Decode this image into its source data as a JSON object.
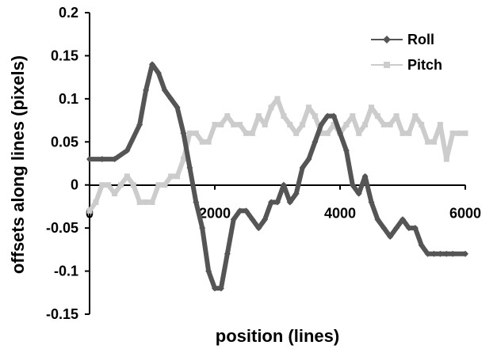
{
  "chart_data": {
    "type": "line",
    "title": "",
    "xlabel": "position (lines)",
    "ylabel": "offsets along lines (pixels)",
    "xlim": [
      0,
      6000
    ],
    "ylim": [
      -0.15,
      0.2
    ],
    "x_ticks": [
      "0",
      "2000",
      "4000",
      "6000"
    ],
    "x_tick_values": [
      0,
      2000,
      4000,
      6000
    ],
    "y_ticks": [
      "0.2",
      "0.15",
      "0.1",
      "0.05",
      "0",
      "-0.05",
      "-0.1",
      "-0.15"
    ],
    "y_tick_values": [
      0.2,
      0.15,
      0.1,
      0.05,
      0,
      -0.05,
      -0.1,
      -0.15
    ],
    "grid": false,
    "legend_position": "top-right",
    "series": [
      {
        "name": "Roll",
        "color": "#555555",
        "marker": "diamond",
        "x": [
          0,
          200,
          400,
          600,
          800,
          900,
          1000,
          1100,
          1200,
          1300,
          1400,
          1500,
          1600,
          1700,
          1800,
          1900,
          2000,
          2100,
          2200,
          2300,
          2400,
          2500,
          2600,
          2700,
          2800,
          2900,
          3000,
          3100,
          3200,
          3300,
          3400,
          3500,
          3600,
          3700,
          3800,
          3900,
          4000,
          4100,
          4200,
          4300,
          4400,
          4500,
          4600,
          4700,
          4800,
          4900,
          5000,
          5100,
          5200,
          5300,
          5400,
          5500,
          5600,
          5700,
          5800,
          6000
        ],
        "y": [
          0.03,
          0.03,
          0.03,
          0.04,
          0.07,
          0.11,
          0.14,
          0.13,
          0.11,
          0.1,
          0.09,
          0.06,
          0.02,
          -0.02,
          -0.05,
          -0.1,
          -0.12,
          -0.12,
          -0.08,
          -0.04,
          -0.03,
          -0.03,
          -0.04,
          -0.05,
          -0.04,
          -0.02,
          -0.02,
          0.0,
          -0.02,
          -0.01,
          0.02,
          0.03,
          0.05,
          0.07,
          0.08,
          0.08,
          0.06,
          0.04,
          0.0,
          -0.01,
          0.01,
          -0.02,
          -0.04,
          -0.05,
          -0.06,
          -0.05,
          -0.04,
          -0.05,
          -0.05,
          -0.07,
          -0.08,
          -0.08,
          -0.08,
          -0.08,
          -0.08,
          -0.08
        ]
      },
      {
        "name": "Pitch",
        "color": "#cccccc",
        "marker": "square",
        "x": [
          0,
          100,
          200,
          300,
          400,
          500,
          600,
          700,
          800,
          900,
          1000,
          1100,
          1200,
          1300,
          1400,
          1500,
          1600,
          1700,
          1800,
          1900,
          2000,
          2100,
          2200,
          2300,
          2400,
          2500,
          2600,
          2700,
          2800,
          2900,
          3000,
          3100,
          3200,
          3300,
          3400,
          3500,
          3600,
          3700,
          3800,
          3900,
          4000,
          4100,
          4200,
          4300,
          4400,
          4500,
          4600,
          4700,
          4800,
          4900,
          5000,
          5100,
          5200,
          5300,
          5400,
          5500,
          5600,
          5700,
          5800,
          5900,
          6000
        ],
        "y": [
          -0.03,
          -0.02,
          0.0,
          0.0,
          -0.01,
          0.0,
          0.01,
          0.0,
          -0.02,
          -0.02,
          -0.02,
          0.0,
          0.0,
          0.01,
          0.01,
          0.03,
          0.06,
          0.06,
          0.05,
          0.05,
          0.07,
          0.07,
          0.08,
          0.07,
          0.07,
          0.06,
          0.06,
          0.08,
          0.07,
          0.09,
          0.1,
          0.08,
          0.07,
          0.06,
          0.07,
          0.09,
          0.08,
          0.06,
          0.06,
          0.07,
          0.06,
          0.07,
          0.08,
          0.06,
          0.07,
          0.09,
          0.08,
          0.07,
          0.07,
          0.08,
          0.06,
          0.06,
          0.08,
          0.07,
          0.05,
          0.05,
          0.07,
          0.03,
          0.06,
          0.06,
          0.06
        ]
      }
    ]
  }
}
